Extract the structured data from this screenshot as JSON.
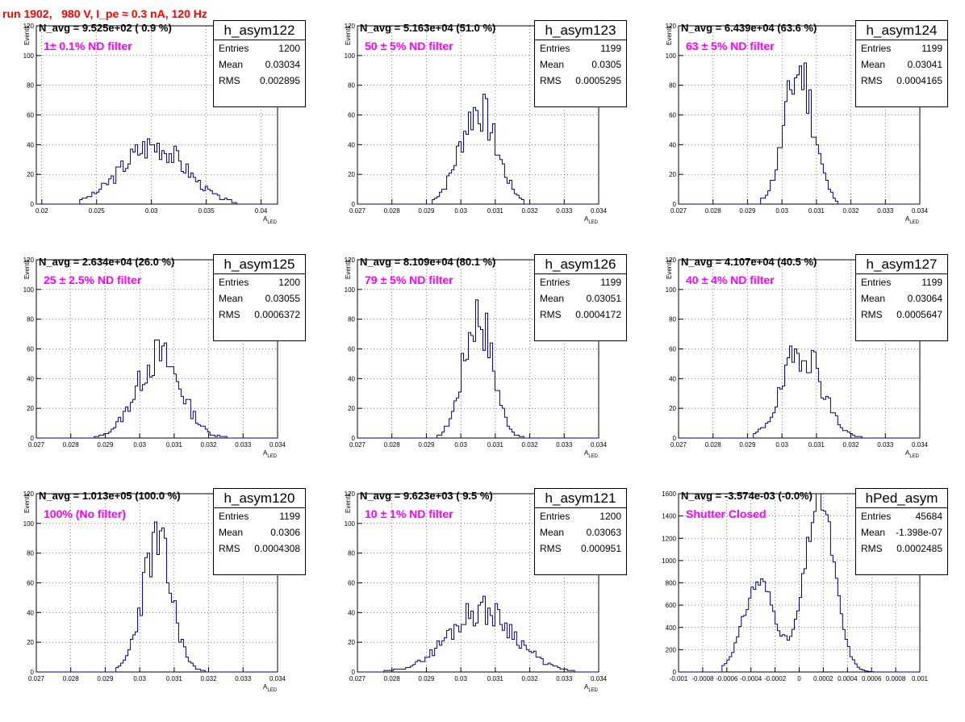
{
  "run_title": "run 1902,   980 V, I_pe ≈ 0.3 nA, 120 Hz",
  "colors": {
    "title": "#ff0000",
    "annotation": "#ff00ff",
    "histogram": "#000080"
  },
  "stat_labels": {
    "entries": "Entries",
    "mean": "Mean",
    "rms": "RMS"
  },
  "chart_data": [
    {
      "type": "histogram",
      "name": "h_asym122",
      "header": "N_avg = 9.525e+02 ( 0.9 %)",
      "annotation": "1± 0.1% ND filter",
      "entries": "1200",
      "mean": "0.03034",
      "rms": "0.002895",
      "xlabel": "A_LED",
      "ylabel": "Events",
      "xlim": [
        0.0195,
        0.0415
      ],
      "ylim": [
        0,
        120
      ],
      "xticks": [
        0.02,
        0.025,
        0.03,
        0.035,
        0.04
      ],
      "xtick_labels": [
        "0.02",
        "0.025",
        "0.03",
        "0.035",
        "0.04"
      ],
      "yticks": [
        0,
        20,
        40,
        60,
        80,
        100,
        120
      ],
      "ytick_labels": [
        "0",
        "20",
        "40",
        "60",
        "80",
        "100",
        "120"
      ],
      "grid": true,
      "mu": 0.0302,
      "sigma": 0.0029,
      "peak": 40,
      "seed": 3,
      "range": [
        0.0235,
        0.0378
      ]
    },
    {
      "type": "histogram",
      "name": "h_asym123",
      "header": "N_avg = 5.163e+04 (51.0 %)",
      "annotation": "50 ± 5% ND filter",
      "entries": "1199",
      "mean": "0.0305",
      "rms": "0.0005295",
      "xlabel": "A_LED",
      "ylabel": "Events",
      "xlim": [
        0.027,
        0.034
      ],
      "ylim": [
        0,
        120
      ],
      "xticks": [
        0.027,
        0.028,
        0.029,
        0.03,
        0.031,
        0.032,
        0.033,
        0.034
      ],
      "xtick_labels": [
        "0.027",
        "0.028",
        "0.029",
        "0.03",
        "0.031",
        "0.032",
        "0.033",
        "0.034"
      ],
      "yticks": [
        0,
        20,
        40,
        60,
        80,
        100,
        120
      ],
      "ytick_labels": [
        "0",
        "20",
        "40",
        "60",
        "80",
        "100",
        "120"
      ],
      "grid": true,
      "mu": 0.0305,
      "sigma": 0.00053,
      "peak": 64,
      "seed": 7,
      "range": [
        0.0292,
        0.0318
      ]
    },
    {
      "type": "histogram",
      "name": "h_asym124",
      "header": "N_avg = 6.439e+04 (63.6 %)",
      "annotation": "63 ± 5% ND filter",
      "entries": "1199",
      "mean": "0.03041",
      "rms": "0.0004165",
      "xlabel": "A_LED",
      "ylabel": "Events",
      "xlim": [
        0.027,
        0.034
      ],
      "ylim": [
        0,
        120
      ],
      "xticks": [
        0.027,
        0.028,
        0.029,
        0.03,
        0.031,
        0.032,
        0.033,
        0.034
      ],
      "xtick_labels": [
        "0.027",
        "0.028",
        "0.029",
        "0.03",
        "0.031",
        "0.032",
        "0.033",
        "0.034"
      ],
      "yticks": [
        0,
        20,
        40,
        60,
        80,
        100,
        120
      ],
      "ytick_labels": [
        "0",
        "20",
        "40",
        "60",
        "80",
        "100",
        "120"
      ],
      "grid": true,
      "mu": 0.0305,
      "sigma": 0.00042,
      "peak": 90,
      "seed": 11,
      "range": [
        0.0294,
        0.0316
      ]
    },
    {
      "type": "histogram",
      "name": "h_asym125",
      "header": "N_avg = 2.634e+04 (26.0 %)",
      "annotation": "25 ± 2.5% ND filter",
      "entries": "1200",
      "mean": "0.03055",
      "rms": "0.0006372",
      "xlabel": "A_LED",
      "ylabel": "Events",
      "xlim": [
        0.027,
        0.034
      ],
      "ylim": [
        0,
        120
      ],
      "xticks": [
        0.027,
        0.028,
        0.029,
        0.03,
        0.031,
        0.032,
        0.033,
        0.034
      ],
      "xtick_labels": [
        "0.027",
        "0.028",
        "0.029",
        "0.03",
        "0.031",
        "0.032",
        "0.033",
        "0.034"
      ],
      "yticks": [
        0,
        20,
        40,
        60,
        80,
        100,
        120
      ],
      "ytick_labels": [
        "0",
        "20",
        "40",
        "60",
        "80",
        "100",
        "120"
      ],
      "grid": true,
      "mu": 0.03055,
      "sigma": 0.00064,
      "peak": 55,
      "seed": 13,
      "range": [
        0.0287,
        0.0325
      ]
    },
    {
      "type": "histogram",
      "name": "h_asym126",
      "header": "N_avg = 8.109e+04 (80.1 %)",
      "annotation": "79 ± 5% ND filter",
      "entries": "1199",
      "mean": "0.03051",
      "rms": "0.0004172",
      "xlabel": "A_LED",
      "ylabel": "Events",
      "xlim": [
        0.027,
        0.034
      ],
      "ylim": [
        0,
        120
      ],
      "xticks": [
        0.027,
        0.028,
        0.029,
        0.03,
        0.031,
        0.032,
        0.033,
        0.034
      ],
      "xtick_labels": [
        "0.027",
        "0.028",
        "0.029",
        "0.03",
        "0.031",
        "0.032",
        "0.033",
        "0.034"
      ],
      "yticks": [
        0,
        20,
        40,
        60,
        80,
        100,
        120
      ],
      "ytick_labels": [
        "0",
        "20",
        "40",
        "60",
        "80",
        "100",
        "120"
      ],
      "grid": true,
      "mu": 0.0305,
      "sigma": 0.00042,
      "peak": 84,
      "seed": 17,
      "range": [
        0.0293,
        0.0318
      ]
    },
    {
      "type": "histogram",
      "name": "h_asym127",
      "header": "N_avg = 4.107e+04 (40.5 %)",
      "annotation": "40 ± 4% ND filter",
      "entries": "1199",
      "mean": "0.03064",
      "rms": "0.0005647",
      "xlabel": "A_LED",
      "ylabel": "Events",
      "xlim": [
        0.027,
        0.034
      ],
      "ylim": [
        0,
        120
      ],
      "xticks": [
        0.027,
        0.028,
        0.029,
        0.03,
        0.031,
        0.032,
        0.033,
        0.034
      ],
      "xtick_labels": [
        "0.027",
        "0.028",
        "0.029",
        "0.03",
        "0.031",
        "0.032",
        "0.033",
        "0.034"
      ],
      "yticks": [
        0,
        20,
        40,
        60,
        80,
        100,
        120
      ],
      "ytick_labels": [
        "0",
        "20",
        "40",
        "60",
        "80",
        "100",
        "120"
      ],
      "grid": true,
      "mu": 0.0306,
      "sigma": 0.00056,
      "peak": 60,
      "seed": 19,
      "range": [
        0.0292,
        0.0323
      ]
    },
    {
      "type": "histogram",
      "name": "h_asym120",
      "header": "N_avg = 1.013e+05 (100.0 %)",
      "annotation": "100% (No filter)",
      "entries": "1199",
      "mean": "0.0306",
      "rms": "0.0004308",
      "xlabel": "A_LED",
      "ylabel": "Events",
      "xlim": [
        0.027,
        0.034
      ],
      "ylim": [
        0,
        120
      ],
      "xticks": [
        0.027,
        0.028,
        0.029,
        0.03,
        0.031,
        0.032,
        0.033,
        0.034
      ],
      "xtick_labels": [
        "0.027",
        "0.028",
        "0.029",
        "0.03",
        "0.031",
        "0.032",
        "0.033",
        "0.034"
      ],
      "yticks": [
        0,
        20,
        40,
        60,
        80,
        100,
        120
      ],
      "ytick_labels": [
        "0",
        "20",
        "40",
        "60",
        "80",
        "100",
        "120"
      ],
      "grid": true,
      "mu": 0.0305,
      "sigma": 0.00043,
      "peak": 86,
      "seed": 23,
      "range": [
        0.0293,
        0.032
      ]
    },
    {
      "type": "histogram",
      "name": "h_asym121",
      "header": "N_avg = 9.623e+03 ( 9.5 %)",
      "annotation": "10 ± 1% ND filter",
      "entries": "1200",
      "mean": "0.03063",
      "rms": "0.000951",
      "xlabel": "A_LED",
      "ylabel": "Events",
      "xlim": [
        0.027,
        0.034
      ],
      "ylim": [
        0,
        120
      ],
      "xticks": [
        0.027,
        0.028,
        0.029,
        0.03,
        0.031,
        0.032,
        0.033,
        0.034
      ],
      "xtick_labels": [
        "0.027",
        "0.028",
        "0.029",
        "0.03",
        "0.031",
        "0.032",
        "0.033",
        "0.034"
      ],
      "yticks": [
        0,
        20,
        40,
        60,
        80,
        100,
        120
      ],
      "ytick_labels": [
        "0",
        "20",
        "40",
        "60",
        "80",
        "100",
        "120"
      ],
      "grid": true,
      "mu": 0.0306,
      "sigma": 0.00095,
      "peak": 42,
      "seed": 29,
      "range": [
        0.0278,
        0.0333
      ]
    },
    {
      "type": "histogram",
      "name": "hPed_asym",
      "header": "N_avg = -3.574e-03 (-0.0%)",
      "annotation": "Shutter Closed",
      "entries": "45684",
      "mean": "-1.398e-07",
      "rms": "0.0002485",
      "xlabel": "",
      "ylabel": "",
      "xlim": [
        -0.001,
        0.001
      ],
      "ylim": [
        0,
        1600
      ],
      "xticks": [
        -0.001,
        -0.0008,
        -0.0006,
        -0.0004,
        -0.0002,
        0,
        0.0002,
        0.0004,
        0.0006,
        0.0008,
        0.001
      ],
      "xtick_labels": [
        "-0.001",
        "-0.0008",
        "-0.0006",
        "-0.0004",
        "-0.0002",
        "0",
        "0.0002",
        "0.0004",
        "0.0006",
        "0.0008",
        "0.001"
      ],
      "yticks": [
        0,
        200,
        400,
        600,
        800,
        1000,
        1200,
        1400,
        1600
      ],
      "ytick_labels": [
        "0",
        "200",
        "400",
        "600",
        "800",
        "1000",
        "1200",
        "1400",
        "1600"
      ],
      "grid": true,
      "bimodal": true,
      "peak": 1560,
      "seed": 31,
      "range": [
        -0.00063,
        0.00063
      ]
    }
  ]
}
